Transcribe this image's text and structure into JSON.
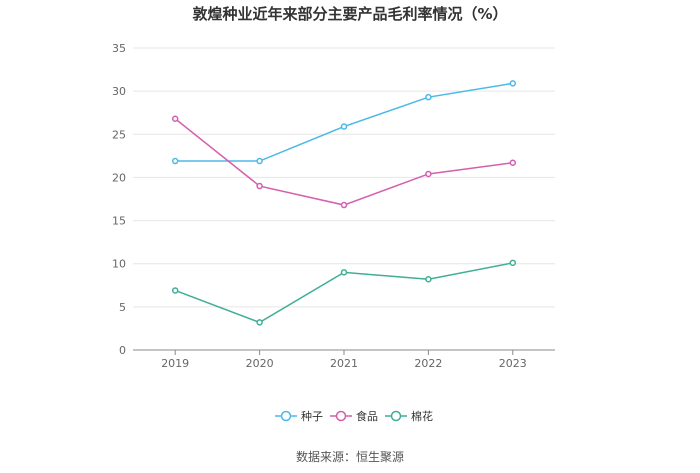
{
  "chart_data": {
    "type": "line",
    "title": "敦煌种业近年来部分主要产品毛利率情况（%）",
    "categories": [
      "2019",
      "2020",
      "2021",
      "2022",
      "2023"
    ],
    "ylim": [
      0,
      35
    ],
    "yticks": [
      0,
      5,
      10,
      15,
      20,
      25,
      30,
      35
    ],
    "grid": true,
    "legend_position": "bottom",
    "series": [
      {
        "name": "种子",
        "color": "#4db8e8",
        "values": [
          21.9,
          21.9,
          25.9,
          29.3,
          30.9
        ]
      },
      {
        "name": "食品",
        "color": "#d45fad",
        "values": [
          26.8,
          19.0,
          16.8,
          20.4,
          21.7
        ]
      },
      {
        "name": "棉花",
        "color": "#3fae95",
        "values": [
          6.9,
          3.2,
          9.0,
          8.2,
          10.1
        ]
      }
    ]
  },
  "source": "数据来源：恒生聚源"
}
